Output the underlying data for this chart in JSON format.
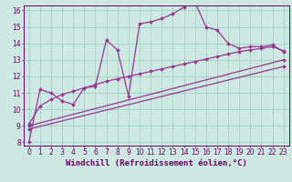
{
  "xlabel": "Windchill (Refroidissement éolien,°C)",
  "ylabel": "",
  "bg_color": "#cce8e0",
  "line_color": "#993399",
  "grid_color": "#99ccbb",
  "xlim": [
    -0.5,
    23.5
  ],
  "ylim": [
    7.8,
    16.3
  ],
  "yticks": [
    8,
    9,
    10,
    11,
    12,
    13,
    14,
    15,
    16
  ],
  "xticks": [
    0,
    1,
    2,
    3,
    4,
    5,
    6,
    7,
    8,
    9,
    10,
    11,
    12,
    13,
    14,
    15,
    16,
    17,
    18,
    19,
    20,
    21,
    22,
    23
  ],
  "lines": [
    {
      "x": [
        0,
        1,
        2,
        3,
        4,
        5,
        6,
        7,
        8,
        9,
        10,
        11,
        12,
        13,
        14,
        15,
        16,
        17,
        18,
        19,
        20,
        21,
        22,
        23
      ],
      "y": [
        8.0,
        11.2,
        11.0,
        10.5,
        10.3,
        11.3,
        11.4,
        14.2,
        13.6,
        10.8,
        15.2,
        15.3,
        15.5,
        15.8,
        16.2,
        16.5,
        15.0,
        14.8,
        14.0,
        13.7,
        13.8,
        13.8,
        13.9,
        13.5
      ]
    },
    {
      "x": [
        0,
        1,
        2,
        3,
        4,
        5,
        6,
        7,
        8,
        9,
        10,
        11,
        12,
        13,
        14,
        15,
        16,
        17,
        18,
        19,
        20,
        21,
        22,
        23
      ],
      "y": [
        9.1,
        10.2,
        10.6,
        10.9,
        11.1,
        11.3,
        11.5,
        11.7,
        11.85,
        12.0,
        12.15,
        12.3,
        12.45,
        12.6,
        12.75,
        12.9,
        13.05,
        13.2,
        13.35,
        13.5,
        13.6,
        13.7,
        13.8,
        13.55
      ]
    },
    {
      "x": [
        0,
        23
      ],
      "y": [
        9.0,
        13.0
      ]
    },
    {
      "x": [
        0,
        23
      ],
      "y": [
        8.8,
        12.6
      ]
    }
  ],
  "marker": "D",
  "marker_size": 2.0,
  "linewidth": 0.9,
  "xlabel_fontsize": 6.5,
  "tick_fontsize": 5.5,
  "xlabel_color": "#660066",
  "tick_color": "#660066",
  "spine_color": "#660066"
}
